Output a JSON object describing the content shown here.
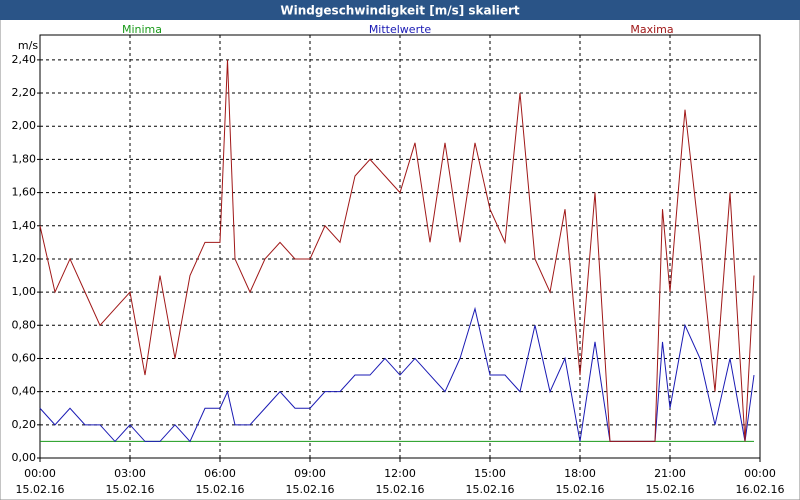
{
  "chart_data": {
    "type": "line",
    "title": "Windgeschwindigkeit [m/s] skaliert",
    "y_label": "m/s",
    "x": [
      0,
      0.5,
      1,
      1.5,
      2,
      2.5,
      3,
      3.5,
      4,
      4.5,
      5,
      5.5,
      6,
      6.25,
      6.5,
      7,
      7.5,
      8,
      8.5,
      9,
      9.5,
      10,
      10.5,
      11,
      11.5,
      12,
      12.5,
      13,
      13.5,
      14,
      14.5,
      15,
      15.5,
      16,
      16.5,
      17,
      17.5,
      18,
      18.5,
      19,
      19.5,
      20,
      20.5,
      20.75,
      21,
      21.5,
      22,
      22.5,
      23,
      23.5,
      23.8
    ],
    "series": [
      {
        "name": "Minima",
        "color": "#1a9a1a",
        "values": [
          0.1,
          0.1,
          0.1,
          0.1,
          0.1,
          0.1,
          0.1,
          0.1,
          0.1,
          0.1,
          0.1,
          0.1,
          0.1,
          0.1,
          0.1,
          0.1,
          0.1,
          0.1,
          0.1,
          0.1,
          0.1,
          0.1,
          0.1,
          0.1,
          0.1,
          0.1,
          0.1,
          0.1,
          0.1,
          0.1,
          0.1,
          0.1,
          0.1,
          0.1,
          0.1,
          0.1,
          0.1,
          0.1,
          0.1,
          0.1,
          0.1,
          0.1,
          0.1,
          0.1,
          0.1,
          0.1,
          0.1,
          0.1,
          0.1,
          0.1,
          0.1
        ]
      },
      {
        "name": "Mittelwerte",
        "color": "#1a1ab4",
        "values": [
          0.3,
          0.2,
          0.3,
          0.2,
          0.2,
          0.1,
          0.2,
          0.1,
          0.1,
          0.2,
          0.1,
          0.3,
          0.3,
          0.4,
          0.2,
          0.2,
          0.3,
          0.4,
          0.3,
          0.3,
          0.4,
          0.4,
          0.5,
          0.5,
          0.6,
          0.5,
          0.6,
          0.5,
          0.4,
          0.6,
          0.9,
          0.5,
          0.5,
          0.4,
          0.8,
          0.4,
          0.6,
          0.1,
          0.7,
          0.1,
          0.1,
          0.1,
          0.1,
          0.7,
          0.3,
          0.8,
          0.6,
          0.2,
          0.6,
          0.1,
          0.5
        ]
      },
      {
        "name": "Maxima",
        "color": "#a01818",
        "values": [
          1.4,
          1.0,
          1.2,
          1.0,
          0.8,
          0.9,
          1.0,
          0.5,
          1.1,
          0.6,
          1.1,
          1.3,
          1.3,
          2.4,
          1.2,
          1.0,
          1.2,
          1.3,
          1.2,
          1.2,
          1.4,
          1.3,
          1.7,
          1.8,
          1.7,
          1.6,
          1.9,
          1.3,
          1.9,
          1.3,
          1.9,
          1.5,
          1.3,
          2.2,
          1.2,
          1.0,
          1.5,
          0.5,
          1.6,
          0.1,
          0.1,
          0.1,
          0.1,
          1.5,
          1.0,
          2.1,
          1.3,
          0.4,
          1.6,
          0.1,
          1.1
        ]
      }
    ],
    "xlim": [
      0,
      24
    ],
    "xticks": [
      {
        "value": 0,
        "label": [
          "00:00",
          "15.02.16"
        ]
      },
      {
        "value": 3,
        "label": [
          "03:00",
          "15.02.16"
        ]
      },
      {
        "value": 6,
        "label": [
          "06:00",
          "15.02.16"
        ]
      },
      {
        "value": 9,
        "label": [
          "09:00",
          "15.02.16"
        ]
      },
      {
        "value": 12,
        "label": [
          "12:00",
          "15.02.16"
        ]
      },
      {
        "value": 15,
        "label": [
          "15:00",
          "15.02.16"
        ]
      },
      {
        "value": 18,
        "label": [
          "18:00",
          "15.02.16"
        ]
      },
      {
        "value": 21,
        "label": [
          "21:00",
          "15.02.16"
        ]
      },
      {
        "value": 24,
        "label": [
          "00:00",
          "16.02.16"
        ]
      }
    ],
    "ylim": [
      0,
      2.55
    ],
    "yticks": [
      {
        "value": 0,
        "label": "0,00"
      },
      {
        "value": 0.2,
        "label": "0,20"
      },
      {
        "value": 0.4,
        "label": "0,40"
      },
      {
        "value": 0.6,
        "label": "0,60"
      },
      {
        "value": 0.8,
        "label": "0,80"
      },
      {
        "value": 1.0,
        "label": "1,00"
      },
      {
        "value": 1.2,
        "label": "1,20"
      },
      {
        "value": 1.4,
        "label": "1,40"
      },
      {
        "value": 1.6,
        "label": "1,60"
      },
      {
        "value": 1.8,
        "label": "1,80"
      },
      {
        "value": 2.0,
        "label": "2,00"
      },
      {
        "value": 2.2,
        "label": "2,20"
      },
      {
        "value": 2.4,
        "label": "2,40"
      }
    ],
    "grid": true
  }
}
